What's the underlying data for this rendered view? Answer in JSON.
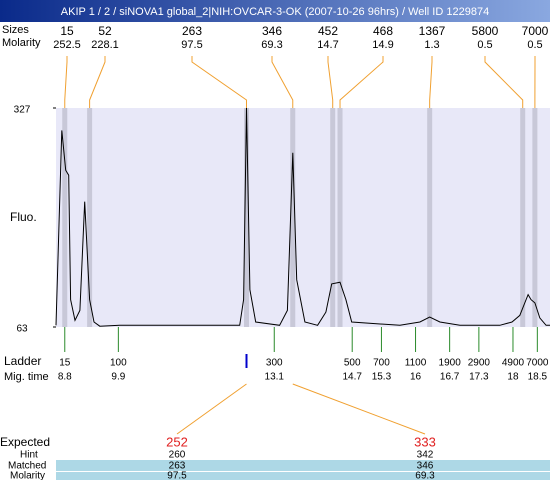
{
  "title": "AKIP 1 / 2 / siNOVA1 global_2|NIH:OVCAR-3-OK (2007-10-26 96hrs) / Well ID 1229874",
  "labels": {
    "sizes": "Sizes",
    "molarity": "Molarity",
    "fluo": "Fluo.",
    "ladder": "Ladder",
    "mig_time": "Mig. time",
    "expected": "Expected",
    "hint": "Hint",
    "matched": "Matched",
    "match_molarity": "Molarity"
  },
  "plot": {
    "ylim": [
      63,
      327
    ],
    "yticks": [
      63,
      327
    ],
    "xlim": [
      8.62,
      18.76
    ],
    "trace": {
      "x": [
        8.62,
        8.74,
        8.82,
        8.88,
        8.92,
        9.01,
        9.11,
        9.21,
        9.31,
        9.4,
        9.52,
        9.93,
        12.39,
        12.47,
        12.53,
        12.6,
        12.72,
        13.21,
        13.37,
        13.48,
        13.56,
        13.73,
        13.99,
        14.16,
        14.28,
        14.45,
        14.57,
        14.69,
        15.68,
        16.09,
        16.29,
        16.5,
        16.91,
        17.73,
        17.98,
        18.14,
        18.31,
        18.37,
        18.45,
        18.55,
        18.68,
        18.76
      ],
      "y": [
        65,
        300,
        252,
        246,
        96,
        71,
        83,
        214,
        96,
        69,
        64,
        65,
        65,
        96,
        327,
        108,
        69,
        65,
        83,
        273,
        120,
        69,
        65,
        81,
        115,
        117,
        96,
        69,
        65,
        69,
        75,
        69,
        65,
        65,
        69,
        77,
        102,
        96,
        92,
        74,
        65,
        65
      ]
    }
  },
  "peaks": {
    "sizes": [
      15,
      52,
      263,
      346,
      452,
      468,
      1367,
      5800,
      7000
    ],
    "molarity": [
      252.5,
      228.1,
      97.5,
      69.3,
      14.7,
      14.9,
      1.3,
      0.5,
      0.5
    ],
    "times": [
      8.8,
      9.31,
      12.53,
      13.48,
      14.3,
      14.45,
      16.29,
      18.2,
      18.45
    ]
  },
  "ladder": {
    "sizes": [
      15,
      100,
      300,
      500,
      700,
      1100,
      1900,
      2900,
      4900,
      7000
    ],
    "times": [
      8.8,
      9.9,
      13.1,
      14.7,
      15.3,
      16,
      16.7,
      17.3,
      18,
      18.5
    ]
  },
  "matches": [
    {
      "expected": 252,
      "hint": 260,
      "matched": 263,
      "molarity": 97.5
    },
    {
      "expected": 333,
      "hint": 342,
      "matched": 346,
      "molarity": 69.3
    }
  ]
}
